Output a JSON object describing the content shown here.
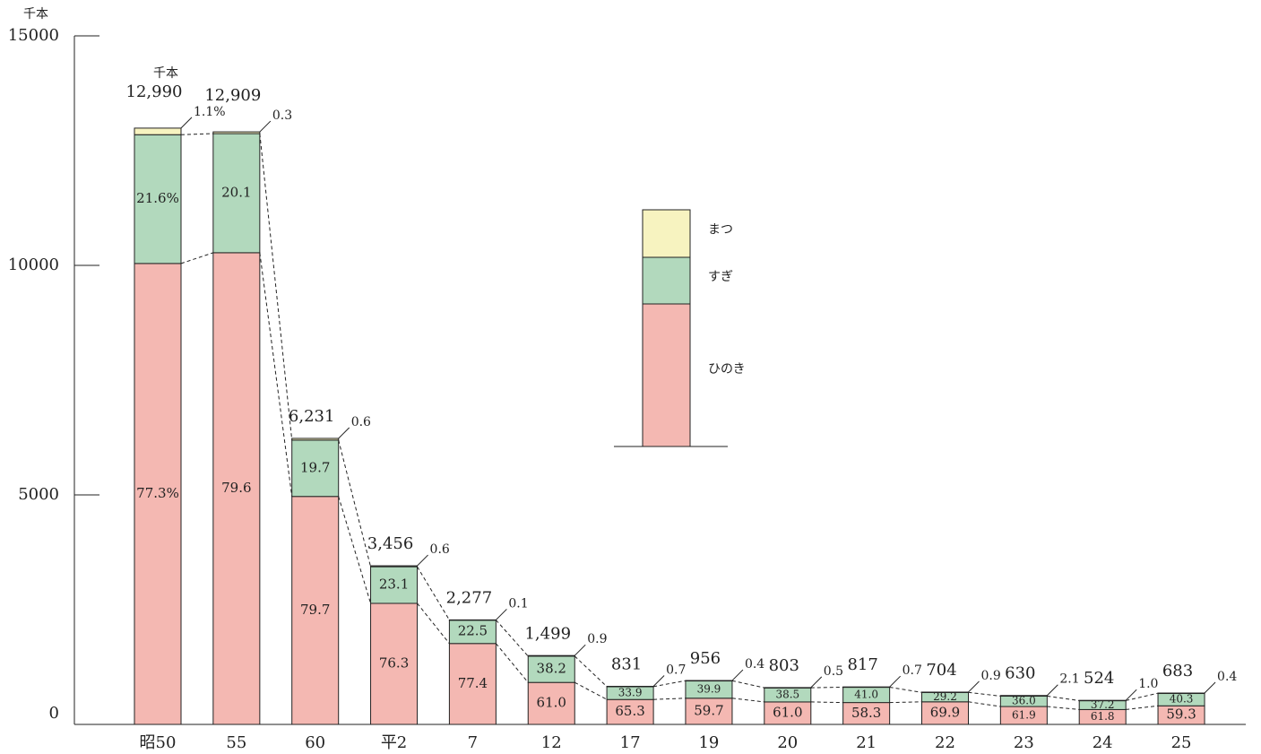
{
  "chart_data": {
    "type": "stacked_percent_bar",
    "y_unit_label": "千本",
    "total_unit_label": "千本",
    "categories": [
      "昭50",
      "55",
      "60",
      "平2",
      "7",
      "12",
      "17",
      "19",
      "20",
      "21",
      "22",
      "23",
      "24",
      "25"
    ],
    "totals": [
      12990,
      12909,
      6231,
      3456,
      2277,
      1499,
      831,
      956,
      803,
      817,
      704,
      630,
      524,
      683
    ],
    "total_labels": [
      "12,990",
      "12,909",
      "6,231",
      "3,456",
      "2,277",
      "1,499",
      "831",
      "956",
      "803",
      "817",
      "704",
      "630",
      "524",
      "683"
    ],
    "series": [
      {
        "name": "ひのき",
        "color": "#f4b8b2",
        "values": [
          77.3,
          79.6,
          79.7,
          76.3,
          77.4,
          61.0,
          65.3,
          59.7,
          61.0,
          58.3,
          69.9,
          61.9,
          61.8,
          59.3
        ],
        "value_labels": [
          "77.3%",
          "79.6",
          "79.7",
          "76.3",
          "77.4",
          "61.0",
          "65.3",
          "59.7",
          "61.0",
          "58.3",
          "69.9",
          "61.9",
          "61.8",
          "59.3"
        ]
      },
      {
        "name": "すぎ",
        "color": "#b2d9bd",
        "values": [
          21.6,
          20.1,
          19.7,
          23.1,
          22.5,
          38.2,
          33.9,
          39.9,
          38.5,
          41.0,
          29.2,
          36.0,
          37.2,
          40.3
        ],
        "value_labels": [
          "21.6%",
          "20.1",
          "19.7",
          "23.1",
          "22.5",
          "38.2",
          "33.9",
          "39.9",
          "38.5",
          "41.0",
          "29.2",
          "36.0",
          "37.2",
          "40.3"
        ]
      },
      {
        "name": "まつ",
        "color": "#f7f3c0",
        "values": [
          1.1,
          0.3,
          0.6,
          0.6,
          0.1,
          0.9,
          0.7,
          0.4,
          0.5,
          0.7,
          0.9,
          2.1,
          1.0,
          0.4
        ],
        "value_labels": [
          "1.1%",
          "0.3",
          "0.6",
          "0.6",
          "0.1",
          "0.9",
          "0.7",
          "0.4",
          "0.5",
          "0.7",
          "0.9",
          "2.1",
          "1.0",
          "0.4"
        ]
      }
    ],
    "ylim": [
      0,
      15000
    ],
    "yticks": [
      0,
      5000,
      10000,
      15000
    ]
  }
}
